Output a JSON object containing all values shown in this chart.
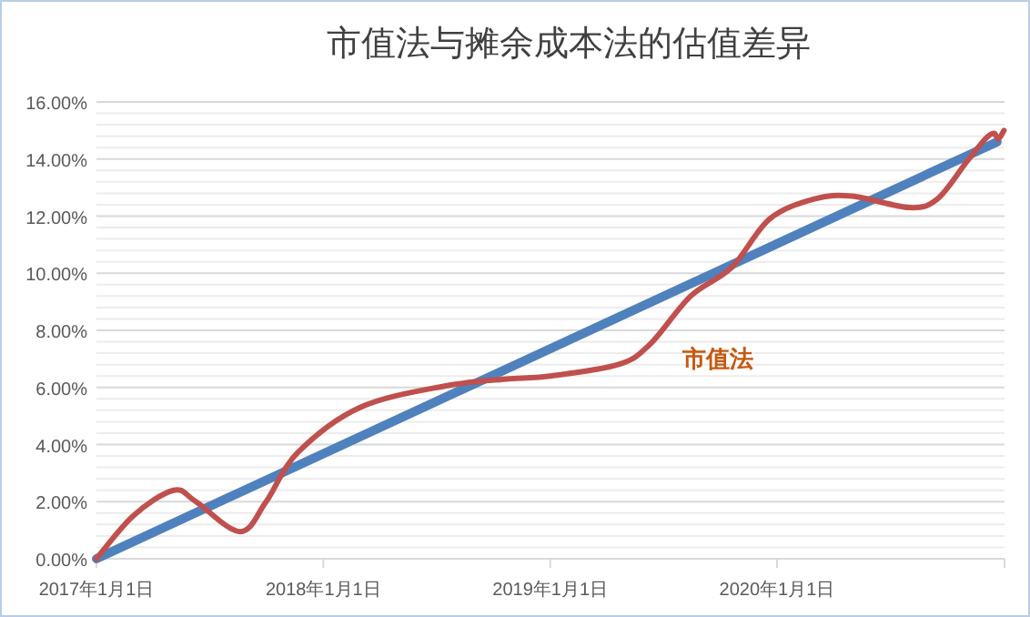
{
  "chart_data": {
    "type": "line",
    "title": "市值法与摊余成本法的估值差异",
    "xlim": [
      "2017-01-01",
      "2021-01-01"
    ],
    "xticks": [
      {
        "value": "2017-01-01",
        "label": "2017年1月1日"
      },
      {
        "value": "2018-01-01",
        "label": "2018年1月1日"
      },
      {
        "value": "2019-01-01",
        "label": "2019年1月1日"
      },
      {
        "value": "2020-01-01",
        "label": "2020年1月1日"
      },
      {
        "value": "2021-01-01",
        "label": null
      }
    ],
    "ylim": [
      0,
      16
    ],
    "yticks": [
      {
        "value": 0,
        "label": "0.00%"
      },
      {
        "value": 0.4,
        "label": null
      },
      {
        "value": 0.8,
        "label": null
      },
      {
        "value": 1.2,
        "label": null
      },
      {
        "value": 1.6,
        "label": null
      },
      {
        "value": 2,
        "label": "2.00%"
      },
      {
        "value": 2.4,
        "label": null
      },
      {
        "value": 2.8,
        "label": null
      },
      {
        "value": 3.2,
        "label": null
      },
      {
        "value": 3.6,
        "label": null
      },
      {
        "value": 4,
        "label": "4.00%"
      },
      {
        "value": 4.4,
        "label": null
      },
      {
        "value": 4.8,
        "label": null
      },
      {
        "value": 5.2,
        "label": null
      },
      {
        "value": 5.6,
        "label": null
      },
      {
        "value": 6,
        "label": "6.00%"
      },
      {
        "value": 6.4,
        "label": null
      },
      {
        "value": 6.8,
        "label": null
      },
      {
        "value": 7.2,
        "label": null
      },
      {
        "value": 7.6,
        "label": null
      },
      {
        "value": 8,
        "label": "8.00%"
      },
      {
        "value": 8.4,
        "label": null
      },
      {
        "value": 8.8,
        "label": null
      },
      {
        "value": 9.2,
        "label": null
      },
      {
        "value": 9.6,
        "label": null
      },
      {
        "value": 10,
        "label": "10.00%"
      },
      {
        "value": 10.4,
        "label": null
      },
      {
        "value": 10.8,
        "label": null
      },
      {
        "value": 11.2,
        "label": null
      },
      {
        "value": 11.6,
        "label": null
      },
      {
        "value": 12,
        "label": "12.00%"
      },
      {
        "value": 12.4,
        "label": null
      },
      {
        "value": 12.8,
        "label": null
      },
      {
        "value": 13.2,
        "label": null
      },
      {
        "value": 13.6,
        "label": null
      },
      {
        "value": 14,
        "label": "14.00%"
      },
      {
        "value": 14.4,
        "label": null
      },
      {
        "value": 14.8,
        "label": null
      },
      {
        "value": 15.2,
        "label": null
      },
      {
        "value": 15.6,
        "label": null
      },
      {
        "value": 16,
        "label": "16.00%"
      }
    ],
    "grid": "y",
    "legend": false,
    "marker": "none",
    "line_style": "solid",
    "series": [
      {
        "color": "#4f81bd",
        "x": [
          "2017-01-01",
          "2020-12-20"
        ],
        "values": [
          0,
          14.6
        ]
      },
      {
        "name": "市值法",
        "color": "#c0504d",
        "x": [
          "2017-01-01",
          "2017-03-01",
          "2017-05-05",
          "2017-06-10",
          "2017-08-20",
          "2017-10-01",
          "2017-11-20",
          "2018-03-01",
          "2018-07-15",
          "2018-10-27",
          "2019-01-01",
          "2019-04-20",
          "2019-06-10",
          "2019-08-15",
          "2019-10-20",
          "2019-12-20",
          "2020-03-01",
          "2020-05-01",
          "2020-08-01",
          "2020-09-15",
          "2020-11-01",
          "2020-12-01",
          "2020-12-15",
          "2020-12-22",
          "2020-12-31"
        ],
        "values": [
          0,
          1.5,
          2.4,
          2.0,
          0.95,
          2.0,
          3.7,
          5.3,
          6.05,
          6.3,
          6.4,
          6.8,
          7.5,
          9.2,
          10.2,
          11.9,
          12.6,
          12.7,
          12.3,
          12.6,
          13.9,
          14.7,
          14.9,
          14.7,
          15.0
        ]
      }
    ]
  }
}
